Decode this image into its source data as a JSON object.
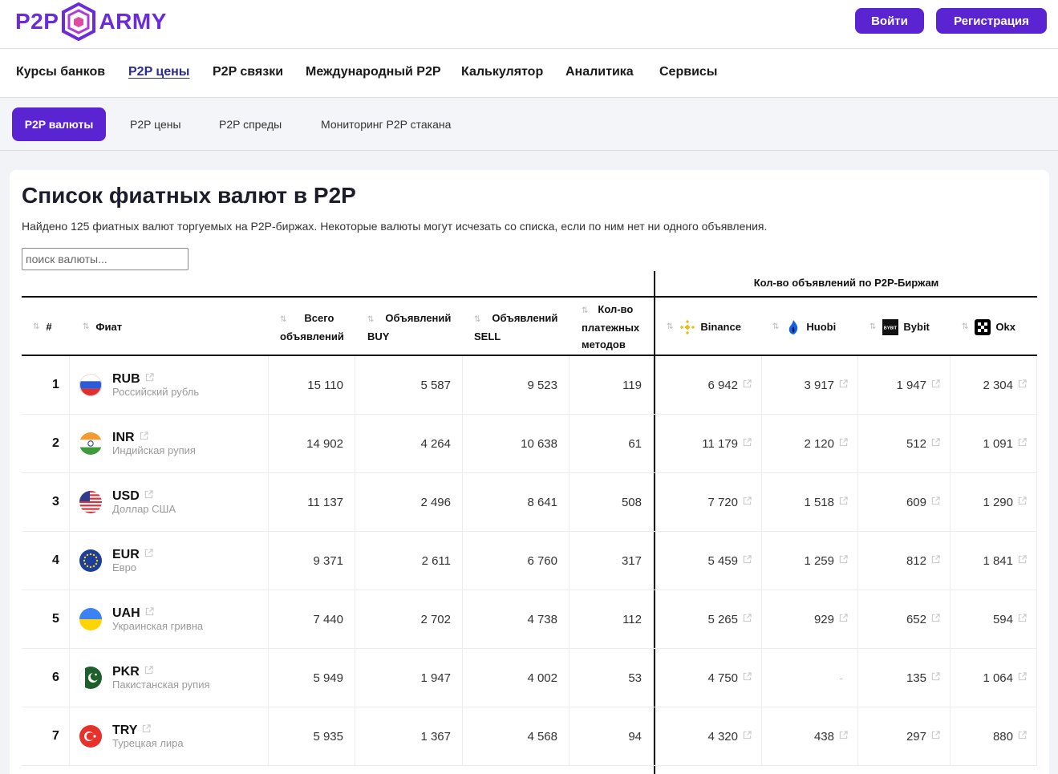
{
  "header": {
    "logo_left": "P2P",
    "logo_right": "ARMY",
    "login_label": "Войти",
    "register_label": "Регистрация"
  },
  "main_nav": [
    {
      "label": "Курсы банков",
      "active": false
    },
    {
      "label": "P2P цены",
      "active": true
    },
    {
      "label": "P2P связки",
      "active": false
    },
    {
      "label": "Международный P2P",
      "active": false
    },
    {
      "label": "Калькулятор",
      "active": false
    },
    {
      "label": "Аналитика",
      "active": false
    },
    {
      "label": "Сервисы",
      "active": false
    }
  ],
  "sub_nav": [
    {
      "label": "P2P валюты",
      "active": true
    },
    {
      "label": "P2P цены",
      "active": false
    },
    {
      "label": "P2P спреды",
      "active": false
    },
    {
      "label": "Мониторинг P2P стакана",
      "active": false
    }
  ],
  "page": {
    "title": "Список фиатных валют в P2P",
    "description": "Найдено 125 фиатных валют торгуемых на P2P-биржах. Некоторые валюты могут исчезать со списка, если по ним нет ни одного объявления.",
    "search_placeholder": "поиск валюты..."
  },
  "table": {
    "group_header": "Кол-во объявлений по P2P-Биржам",
    "columns": {
      "rank": "#",
      "fiat": "Фиат",
      "total_1": "Всего",
      "total_2": "объявлений",
      "buy_1": "Объявлений",
      "buy_2": "BUY",
      "sell_1": "Объявлений",
      "sell_2": "SELL",
      "methods_1": "Кол-во",
      "methods_2": "платежных",
      "methods_3": "методов",
      "binance": "Binance",
      "huobi": "Huobi",
      "bybit": "Bybit",
      "okx": "Okx"
    },
    "rows": [
      {
        "rank": "1",
        "code": "RUB",
        "name": "Российский рубль",
        "flag": "ru",
        "total": "15 110",
        "buy": "5 587",
        "sell": "9 523",
        "methods": "119",
        "binance": "6 942",
        "huobi": "3 917",
        "bybit": "1 947",
        "okx": "2 304"
      },
      {
        "rank": "2",
        "code": "INR",
        "name": "Индийская рупия",
        "flag": "in",
        "total": "14 902",
        "buy": "4 264",
        "sell": "10 638",
        "methods": "61",
        "binance": "11 179",
        "huobi": "2 120",
        "bybit": "512",
        "okx": "1 091"
      },
      {
        "rank": "3",
        "code": "USD",
        "name": "Доллар США",
        "flag": "us",
        "total": "11 137",
        "buy": "2 496",
        "sell": "8 641",
        "methods": "508",
        "binance": "7 720",
        "huobi": "1 518",
        "bybit": "609",
        "okx": "1 290"
      },
      {
        "rank": "4",
        "code": "EUR",
        "name": "Евро",
        "flag": "eu",
        "total": "9 371",
        "buy": "2 611",
        "sell": "6 760",
        "methods": "317",
        "binance": "5 459",
        "huobi": "1 259",
        "bybit": "812",
        "okx": "1 841"
      },
      {
        "rank": "5",
        "code": "UAH",
        "name": "Украинская гривна",
        "flag": "ua",
        "total": "7 440",
        "buy": "2 702",
        "sell": "4 738",
        "methods": "112",
        "binance": "5 265",
        "huobi": "929",
        "bybit": "652",
        "okx": "594"
      },
      {
        "rank": "6",
        "code": "PKR",
        "name": "Пакистанская рупия",
        "flag": "pk",
        "total": "5 949",
        "buy": "1 947",
        "sell": "4 002",
        "methods": "53",
        "binance": "4 750",
        "huobi": "-",
        "bybit": "135",
        "okx": "1 064"
      },
      {
        "rank": "7",
        "code": "TRY",
        "name": "Турецкая лира",
        "flag": "tr",
        "total": "5 935",
        "buy": "1 367",
        "sell": "4 568",
        "methods": "94",
        "binance": "4 320",
        "huobi": "438",
        "bybit": "297",
        "okx": "880"
      }
    ]
  },
  "colors": {
    "brand": "#5a24d2",
    "logo": "#6a2bd9",
    "binance": "#f0b90b",
    "huobi": "#1a5fe0"
  }
}
